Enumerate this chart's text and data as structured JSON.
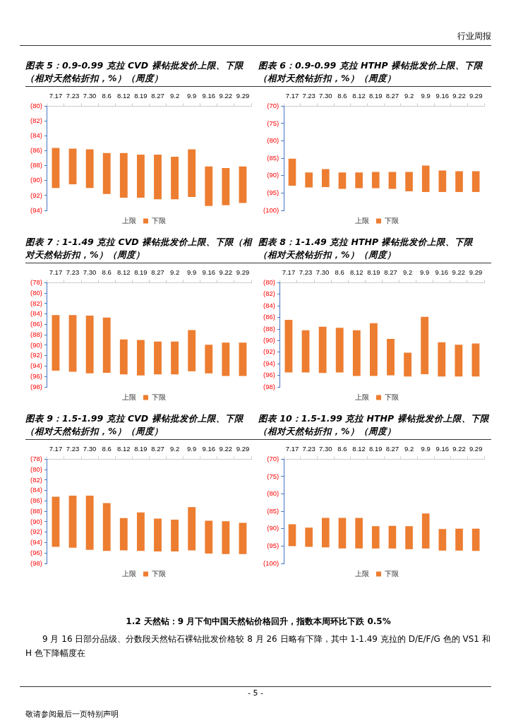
{
  "chart_data": [
    {
      "type": "bar",
      "title": "图表 5：0.9-0.99 克拉 CVD 裸钻批发价上限、下限（相对天然钻折扣，%）（周度）",
      "categories": [
        "7.17",
        "7.23",
        "7.30",
        "8.6",
        "8.12",
        "8.19",
        "8.27",
        "9.2",
        "9.9",
        "9.16",
        "9.22",
        "9.29"
      ],
      "series": [
        {
          "name": "上限",
          "values": [
            null,
            null,
            null,
            null,
            null,
            null,
            null,
            null,
            null,
            null,
            null,
            null
          ]
        },
        {
          "name": "下限",
          "color": "#ed7d31",
          "base": [
            -85.6,
            -85.7,
            -85.8,
            -86.3,
            -86.3,
            -86.5,
            -86.5,
            -86.8,
            -85.8,
            -88.1,
            -88.3,
            -88.1
          ],
          "values": [
            -5.4,
            -4.8,
            -5.2,
            -5.5,
            -6.0,
            -5.8,
            -6.0,
            -5.7,
            -6.4,
            -5.3,
            -5.0,
            -4.9
          ]
        }
      ],
      "ylim": [
        -94,
        -80
      ],
      "yticks": [
        {
          "value": -80,
          "label": "(80)"
        },
        {
          "value": -82,
          "label": "(82)"
        },
        {
          "value": -84,
          "label": "(84)"
        },
        {
          "value": -86,
          "label": "(86)"
        },
        {
          "value": -88,
          "label": "(88)"
        },
        {
          "value": -90,
          "label": "(90)"
        },
        {
          "value": -92,
          "label": "(92)"
        },
        {
          "value": -94,
          "label": "(94)"
        }
      ],
      "legend": "bottom"
    },
    {
      "type": "bar",
      "title": "图表 6：0.9-0.99 克拉 HTHP 裸钻批发价上限、下限（相对天然钻折扣，%）（周度）",
      "categories": [
        "7.17",
        "7.23",
        "7.30",
        "8.6",
        "8.12",
        "8.19",
        "8.27",
        "9.2",
        "9.9",
        "9.16",
        "9.22",
        "9.29"
      ],
      "series": [
        {
          "name": "上限",
          "values": [
            null,
            null,
            null,
            null,
            null,
            null,
            null,
            null,
            null,
            null,
            null,
            null
          ]
        },
        {
          "name": "下限",
          "color": "#ed7d31",
          "base": [
            -85.1,
            -89.1,
            -88.1,
            -89.1,
            -89.1,
            -88.9,
            -88.9,
            -88.9,
            -87.1,
            -88.5,
            -88.7,
            -88.7
          ],
          "values": [
            -7.8,
            -4.3,
            -5.2,
            -4.7,
            -4.5,
            -4.7,
            -4.9,
            -5.6,
            -7.6,
            -6.2,
            -6.0,
            -6.0
          ]
        }
      ],
      "ylim": [
        -100,
        -70
      ],
      "yticks": [
        {
          "value": -70,
          "label": "(70)"
        },
        {
          "value": -75,
          "label": "(75)"
        },
        {
          "value": -80,
          "label": "(80)"
        },
        {
          "value": -85,
          "label": "(85)"
        },
        {
          "value": -90,
          "label": "(90)"
        },
        {
          "value": -95,
          "label": "(95)"
        },
        {
          "value": -100,
          "label": "(100)"
        }
      ],
      "legend": "bottom"
    },
    {
      "type": "bar",
      "title": "图表 7：1-1.49 克拉 CVD 裸钻批发价上限、下限（相对天然钻折扣，%）（周度）",
      "categories": [
        "7.17",
        "7.23",
        "7.30",
        "8.6",
        "8.12",
        "8.19",
        "8.27",
        "9.2",
        "9.9",
        "9.16",
        "9.22",
        "9.29"
      ],
      "series": [
        {
          "name": "上限",
          "values": [
            null,
            null,
            null,
            null,
            null,
            null,
            null,
            null,
            null,
            null,
            null,
            null
          ]
        },
        {
          "name": "下限",
          "color": "#ed7d31",
          "base": [
            -84.2,
            -84.2,
            -84.3,
            -84.7,
            -88.9,
            -89.0,
            -89.3,
            -89.3,
            -87.1,
            -89.9,
            -89.5,
            -89.5
          ],
          "values": [
            -10.7,
            -10.9,
            -11.1,
            -10.6,
            -6.7,
            -6.8,
            -6.3,
            -6.3,
            -7.9,
            -5.5,
            -6.4,
            -6.4
          ]
        }
      ],
      "ylim": [
        -98,
        -78
      ],
      "yticks": [
        {
          "value": -78,
          "label": "(78)"
        },
        {
          "value": -80,
          "label": "(80)"
        },
        {
          "value": -82,
          "label": "(82)"
        },
        {
          "value": -84,
          "label": "(84)"
        },
        {
          "value": -86,
          "label": "(86)"
        },
        {
          "value": -88,
          "label": "(88)"
        },
        {
          "value": -90,
          "label": "(90)"
        },
        {
          "value": -92,
          "label": "(92)"
        },
        {
          "value": -94,
          "label": "(94)"
        },
        {
          "value": -96,
          "label": "(96)"
        },
        {
          "value": -98,
          "label": "(98)"
        }
      ],
      "legend": "bottom"
    },
    {
      "type": "bar",
      "title": "图表 8：1-1.49 克拉 HTHP 裸钻批发价上限、下限（相对天然钻折扣，%）（周度）",
      "categories": [
        "7.17",
        "7.23",
        "7.30",
        "8.6",
        "8.12",
        "8.19",
        "8.27",
        "9.2",
        "9.9",
        "9.16",
        "9.22",
        "9.29"
      ],
      "series": [
        {
          "name": "上限",
          "values": [
            null,
            null,
            null,
            null,
            null,
            null,
            null,
            null,
            null,
            null,
            null,
            null
          ]
        },
        {
          "name": "下限",
          "color": "#ed7d31",
          "base": [
            -86.4,
            -88.2,
            -87.6,
            -87.8,
            -88.2,
            -87.0,
            -89.7,
            -92.1,
            -85.9,
            -90.3,
            -90.7,
            -90.5
          ],
          "values": [
            -9.1,
            -7.3,
            -8.0,
            -7.7,
            -7.9,
            -9.1,
            -6.3,
            -4.1,
            -9.9,
            -5.9,
            -5.5,
            -5.7
          ]
        }
      ],
      "ylim": [
        -98,
        -80
      ],
      "yticks": [
        {
          "value": -80,
          "label": "(80)"
        },
        {
          "value": -82,
          "label": "(82)"
        },
        {
          "value": -84,
          "label": "(84)"
        },
        {
          "value": -86,
          "label": "(86)"
        },
        {
          "value": -88,
          "label": "(88)"
        },
        {
          "value": -90,
          "label": "(90)"
        },
        {
          "value": -92,
          "label": "(92)"
        },
        {
          "value": -94,
          "label": "(94)"
        },
        {
          "value": -96,
          "label": "(96)"
        },
        {
          "value": -98,
          "label": "(98)"
        }
      ],
      "legend": "bottom"
    },
    {
      "type": "bar",
      "title": "图表 9：1.5-1.99 克拉 CVD 裸钻批发价上限、下限（相对天然钻折扣，%）（周度）",
      "categories": [
        "7.17",
        "7.23",
        "7.30",
        "8.6",
        "8.12",
        "8.19",
        "8.27",
        "9.2",
        "9.9",
        "9.16",
        "9.22",
        "9.29"
      ],
      "series": [
        {
          "name": "上限",
          "values": [
            null,
            null,
            null,
            null,
            null,
            null,
            null,
            null,
            null,
            null,
            null,
            null
          ]
        },
        {
          "name": "下限",
          "color": "#ed7d31",
          "base": [
            -85.2,
            -85.0,
            -85.0,
            -86.4,
            -89.3,
            -88.2,
            -89.4,
            -89.6,
            -87.2,
            -89.8,
            -89.9,
            -90.2
          ],
          "values": [
            -9.6,
            -10.0,
            -10.4,
            -9.2,
            -6.2,
            -7.4,
            -6.3,
            -6.1,
            -8.3,
            -6.3,
            -6.3,
            -6.0
          ]
        }
      ],
      "ylim": [
        -98,
        -78
      ],
      "yticks": [
        {
          "value": -78,
          "label": "(78)"
        },
        {
          "value": -80,
          "label": "(80)"
        },
        {
          "value": -82,
          "label": "(82)"
        },
        {
          "value": -84,
          "label": "(84)"
        },
        {
          "value": -86,
          "label": "(86)"
        },
        {
          "value": -88,
          "label": "(88)"
        },
        {
          "value": -90,
          "label": "(90)"
        },
        {
          "value": -92,
          "label": "(92)"
        },
        {
          "value": -94,
          "label": "(94)"
        },
        {
          "value": -96,
          "label": "(96)"
        },
        {
          "value": -98,
          "label": "(98)"
        }
      ],
      "legend": "bottom"
    },
    {
      "type": "bar",
      "title": "图表 10：1.5-1.99 克拉 HTHP 裸钻批发价上限、下限（相对天然钻折扣，%）（周度）",
      "categories": [
        "7.17",
        "7.23",
        "7.30",
        "8.6",
        "8.12",
        "8.19",
        "8.27",
        "9.2",
        "9.9",
        "9.16",
        "9.22",
        "9.29"
      ],
      "series": [
        {
          "name": "上限",
          "values": [
            null,
            null,
            null,
            null,
            null,
            null,
            null,
            null,
            null,
            null,
            null,
            null
          ]
        },
        {
          "name": "下限",
          "color": "#ed7d31",
          "base": [
            -88.7,
            -89.7,
            -86.9,
            -86.9,
            -86.9,
            -89.3,
            -89.2,
            -89.3,
            -85.6,
            -90.1,
            -90.0,
            -90.0
          ],
          "values": [
            -6.3,
            -5.5,
            -8.5,
            -8.8,
            -8.8,
            -6.4,
            -6.5,
            -6.6,
            -10.1,
            -6.2,
            -6.3,
            -6.4
          ]
        }
      ],
      "ylim": [
        -100,
        -70
      ],
      "yticks": [
        {
          "value": -70,
          "label": "(70)"
        },
        {
          "value": -75,
          "label": "(75)"
        },
        {
          "value": -80,
          "label": "(80)"
        },
        {
          "value": -85,
          "label": "(85)"
        },
        {
          "value": -90,
          "label": "(90)"
        },
        {
          "value": -95,
          "label": "(95)"
        },
        {
          "value": -100,
          "label": "(100)"
        }
      ],
      "legend": "bottom"
    },
    {
      "type": "other",
      "title": "1.2 天然钻：9 月下旬中国天然钻价格回升，指数本周环比下跌 0.5%",
      "annotations": [
        "行业周报",
        "9 月 16 日部分品级、分数段天然钻石裸钻批发价格较 8 月 26 日略有下降，其中 1-1.49 克拉的 D/E/F/G 色的 VS1 和 H 色下降幅度在",
        "- 5 -",
        "敬请参阅最后一页特别声明"
      ]
    }
  ]
}
